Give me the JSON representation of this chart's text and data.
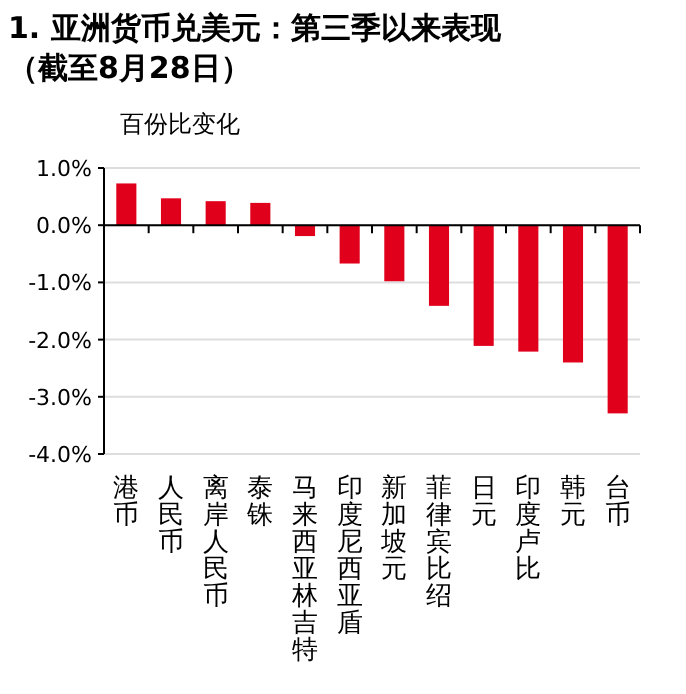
{
  "chart_data": {
    "type": "bar",
    "title": "1. 亚洲货币兑美元：第三季以来表现",
    "subtitle": "（截至8月28日）",
    "ylabel": "百份比变化",
    "categories": [
      "港币",
      "人民币",
      "离岸人民币",
      "泰铢",
      "马来西亚林吉特",
      "印度尼西亚盾",
      "新加坡元",
      "菲律宾比绍",
      "日元",
      "印度卢比",
      "韩元",
      "台币"
    ],
    "values": [
      0.73,
      0.47,
      0.42,
      0.39,
      -0.19,
      -0.67,
      -0.98,
      -1.41,
      -2.11,
      -2.21,
      -2.4,
      -3.29
    ],
    "color": "#e0001b",
    "ylim": [
      -4,
      1
    ],
    "yticks": [
      {
        "value": 1,
        "label": "1.0%"
      },
      {
        "value": 0,
        "label": "0.0%"
      },
      {
        "value": -1,
        "label": "-1.0%"
      },
      {
        "value": -2,
        "label": "-2.0%"
      },
      {
        "value": -3,
        "label": "-3.0%"
      },
      {
        "value": -4,
        "label": "-4.0%"
      }
    ],
    "grid": "y"
  }
}
